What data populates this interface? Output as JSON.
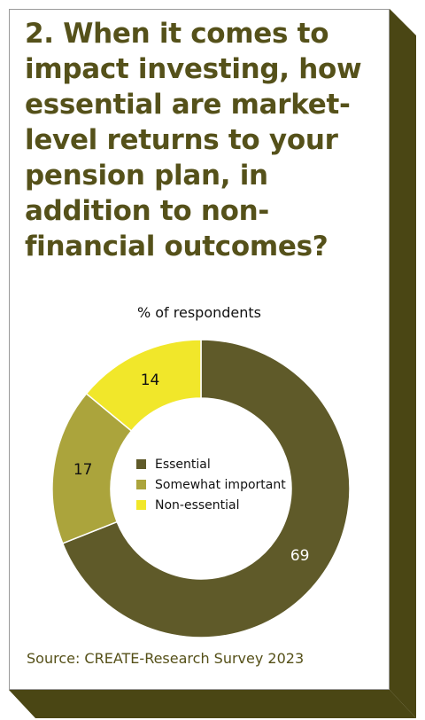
{
  "card": {
    "question": "2. When it comes to impact investing, how essential are market-level returns to your pension plan, in addition to non-financial outcomes?",
    "source": "Source: CREATE-Research Survey 2023"
  },
  "colors": {
    "title_text": "#55511a",
    "shadow": "#4a4614",
    "essential": "#5f5a29",
    "somewhat_important": "#aba43c",
    "non_essential": "#f1e72a"
  },
  "chart_data": {
    "type": "pie",
    "donut": true,
    "subtitle": "% of respondents",
    "unit": "% of respondents",
    "slices": [
      {
        "name": "Essential",
        "value": 69,
        "color": "#5f5a29",
        "label_color": "#ffffff"
      },
      {
        "name": "Somewhat important",
        "value": 17,
        "color": "#aba43c",
        "label_color": "#111111"
      },
      {
        "name": "Non-essential",
        "value": 14,
        "color": "#f1e72a",
        "label_color": "#111111"
      }
    ],
    "legend": {
      "position": "center",
      "items": [
        "Essential",
        "Somewhat important",
        "Non-essential"
      ]
    }
  }
}
